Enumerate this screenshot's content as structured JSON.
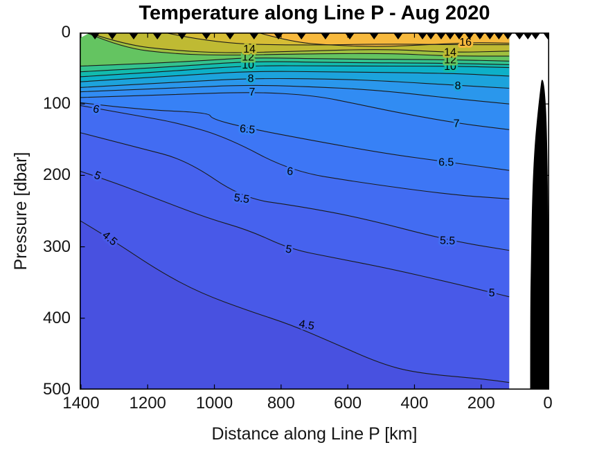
{
  "chart_data": {
    "type": "filled_contour",
    "title": "Temperature along Line P - Aug 2020",
    "xlabel": "Distance along Line P [km]",
    "ylabel": "Pressure [dbar]",
    "x_axis": {
      "ticks": [
        1400,
        1200,
        1000,
        800,
        600,
        400,
        200,
        0
      ],
      "range": [
        1404,
        -4
      ],
      "reversed": true,
      "unit": "km"
    },
    "y_axis": {
      "ticks": [
        0,
        100,
        200,
        300,
        400,
        500
      ],
      "range": [
        0,
        500
      ],
      "direction": "down",
      "unit": "dbar"
    },
    "data_extent_km": [
      1404,
      116
    ],
    "labeled_levels": [
      4.5,
      5,
      5.5,
      6,
      6.5,
      7,
      8,
      10,
      12,
      14,
      16
    ],
    "deepest_band_fill": "#4851e0",
    "contour_line_color": "#1a1a1a",
    "contours": [
      {
        "level": 4.5,
        "labeled": true,
        "fill_above": "#4859e8",
        "points": [
          [
            1404,
            263
          ],
          [
            1311,
            289
          ],
          [
            1166,
            334
          ],
          [
            1041,
            365
          ],
          [
            895,
            390
          ],
          [
            771,
            409
          ],
          [
            646,
            434
          ],
          [
            500,
            464
          ],
          [
            390,
            477
          ],
          [
            195,
            485
          ],
          [
            116,
            490
          ]
        ],
        "labels": [
          [
            1313,
            288,
            40
          ],
          [
            723,
            409,
            10
          ]
        ]
      },
      {
        "level": 5,
        "labeled": true,
        "fill_above": "#4662ee",
        "points": [
          [
            1404,
            194
          ],
          [
            1311,
            208
          ],
          [
            1166,
            234
          ],
          [
            1020,
            260
          ],
          [
            895,
            277
          ],
          [
            774,
            303
          ],
          [
            646,
            315
          ],
          [
            480,
            330
          ],
          [
            293,
            350
          ],
          [
            168,
            364
          ],
          [
            116,
            370
          ]
        ],
        "labels": [
          [
            1350,
            200,
            22
          ],
          [
            777,
            303,
            10
          ],
          [
            168,
            364,
            2
          ]
        ]
      },
      {
        "level": 5.5,
        "labeled": true,
        "fill_above": "#426cf2",
        "points": [
          [
            1404,
            140
          ],
          [
            1228,
            161
          ],
          [
            1082,
            179
          ],
          [
            916,
            232
          ],
          [
            750,
            243
          ],
          [
            563,
            259
          ],
          [
            299,
            291
          ],
          [
            116,
            305
          ]
        ],
        "labels": [
          [
            918,
            232,
            8
          ],
          [
            301,
            291,
            2
          ]
        ]
      },
      {
        "level": 6,
        "labeled": true,
        "fill_above": "#3d76f5",
        "points": [
          [
            1404,
            102
          ],
          [
            1248,
            115
          ],
          [
            1103,
            127
          ],
          [
            957,
            148
          ],
          [
            771,
            194
          ],
          [
            563,
            210
          ],
          [
            293,
            227
          ],
          [
            116,
            233
          ]
        ],
        "labels": [
          [
            1354,
            107,
            14
          ],
          [
            773,
            194,
            4
          ]
        ]
      },
      {
        "level": 6.5,
        "labeled": true,
        "fill_above": "#3781f6",
        "points": [
          [
            1404,
            98
          ],
          [
            1228,
            108
          ],
          [
            1016,
            112
          ],
          [
            1009,
            121
          ],
          [
            899,
            134
          ],
          [
            708,
            151
          ],
          [
            480,
            170
          ],
          [
            303,
            181
          ],
          [
            116,
            193
          ]
        ],
        "labels": [
          [
            901,
            135,
            6
          ],
          [
            305,
            181,
            0
          ]
        ]
      },
      {
        "level": 7,
        "labeled": true,
        "fill_above": "#318cf3",
        "points": [
          [
            1404,
            91
          ],
          [
            1124,
            87
          ],
          [
            885,
            83
          ],
          [
            700,
            88
          ],
          [
            563,
            101
          ],
          [
            450,
            112
          ],
          [
            272,
            127
          ],
          [
            116,
            136
          ]
        ],
        "labels": [
          [
            887,
            83,
            0
          ],
          [
            274,
            127,
            0
          ]
        ]
      },
      {
        "level": 7.5,
        "labeled": false,
        "fill_above": "#2a97ec",
        "points": [
          [
            1404,
            83
          ],
          [
            1124,
            78
          ],
          [
            895,
            73
          ],
          [
            646,
            77
          ],
          [
            480,
            82
          ],
          [
            293,
            92
          ],
          [
            116,
            100
          ]
        ],
        "labels": []
      },
      {
        "level": 8,
        "labeled": true,
        "fill_above": "#1ca3dc",
        "points": [
          [
            1404,
            77
          ],
          [
            1124,
            70
          ],
          [
            895,
            64
          ],
          [
            646,
            65
          ],
          [
            480,
            68
          ],
          [
            270,
            74
          ],
          [
            116,
            78
          ]
        ],
        "labels": [
          [
            891,
            64,
            0
          ],
          [
            270,
            74,
            0
          ]
        ]
      },
      {
        "level": 9,
        "labeled": false,
        "fill_above": "#0db0c8",
        "points": [
          [
            1404,
            69
          ],
          [
            1124,
            61
          ],
          [
            895,
            54
          ],
          [
            646,
            55
          ],
          [
            293,
            57
          ],
          [
            116,
            61
          ]
        ],
        "labels": []
      },
      {
        "level": 10,
        "labeled": true,
        "fill_above": "#12bbae",
        "points": [
          [
            1404,
            62
          ],
          [
            1124,
            54
          ],
          [
            895,
            46
          ],
          [
            646,
            47
          ],
          [
            293,
            47
          ],
          [
            116,
            49
          ]
        ],
        "labels": [
          [
            899,
            45,
            0
          ],
          [
            293,
            47,
            0
          ]
        ]
      },
      {
        "level": 11,
        "labeled": false,
        "fill_above": "#33c28e",
        "points": [
          [
            1404,
            55
          ],
          [
            1124,
            48
          ],
          [
            895,
            40
          ],
          [
            646,
            42
          ],
          [
            293,
            43
          ],
          [
            116,
            45
          ]
        ],
        "labels": []
      },
      {
        "level": 12,
        "labeled": true,
        "fill_above": "#64c461",
        "points": [
          [
            1404,
            47
          ],
          [
            1228,
            44
          ],
          [
            1020,
            39
          ],
          [
            895,
            35
          ],
          [
            646,
            37
          ],
          [
            293,
            38
          ],
          [
            116,
            40
          ]
        ],
        "labels": [
          [
            899,
            34,
            0
          ],
          [
            293,
            38,
            0
          ]
        ]
      },
      {
        "level": 13,
        "labeled": false,
        "fill_above": "#a0c03f",
        "points": [
          [
            1385,
            0
          ],
          [
            1280,
            21
          ],
          [
            1124,
            30
          ],
          [
            958,
            32
          ],
          [
            750,
            30
          ],
          [
            480,
            29
          ],
          [
            293,
            33
          ],
          [
            116,
            33
          ]
        ],
        "labels": []
      },
      {
        "level": 14,
        "labeled": true,
        "fill_above": "#bfba33",
        "points": [
          [
            1379,
            0
          ],
          [
            1269,
            17
          ],
          [
            1124,
            25
          ],
          [
            958,
            29
          ],
          [
            750,
            26
          ],
          [
            480,
            23
          ],
          [
            293,
            28
          ],
          [
            116,
            26
          ]
        ],
        "labels": [
          [
            895,
            23,
            0
          ],
          [
            293,
            27,
            0
          ]
        ]
      },
      {
        "level": 15,
        "labeled": false,
        "fill_above": "#d6bd35",
        "points": [
          [
            1150,
            0
          ],
          [
            1000,
            15
          ],
          [
            750,
            18
          ],
          [
            480,
            16
          ],
          [
            293,
            17
          ],
          [
            116,
            17
          ]
        ],
        "labels": []
      },
      {
        "level": 16,
        "labeled": true,
        "fill_above": "#f7b93d",
        "points": [
          [
            870,
            0
          ],
          [
            771,
            13
          ],
          [
            646,
            18
          ],
          [
            500,
            20
          ],
          [
            355,
            17
          ],
          [
            231,
            14
          ],
          [
            116,
            15
          ]
        ],
        "labels": [
          [
            247,
            13,
            0
          ]
        ]
      }
    ],
    "stations_km": [
      1358,
      1306,
      1242,
      1171,
      1097,
      1024,
      953,
      881,
      808,
      739,
      667,
      594,
      521,
      449,
      376,
      351,
      320,
      293,
      266,
      235,
      204,
      174,
      147,
      120,
      85,
      60,
      37,
      0
    ],
    "station_marker": {
      "shape": "triangle-down",
      "color": "#000000"
    },
    "bathymetry_polygon": [
      [
        52,
        500
      ],
      [
        52,
        390
      ],
      [
        50,
        323
      ],
      [
        46,
        226
      ],
      [
        39,
        158
      ],
      [
        29,
        109
      ],
      [
        21,
        76
      ],
      [
        17,
        63
      ],
      [
        10,
        80
      ],
      [
        4,
        129
      ],
      [
        0,
        245
      ],
      [
        -2,
        500
      ]
    ],
    "bathymetry_color": "#000000",
    "no_data_notch": [
      [
        1404,
        0
      ],
      [
        1372,
        0
      ],
      [
        1404,
        8
      ]
    ]
  },
  "style": {
    "frame_color": "#000000",
    "tick_color": "#000000",
    "text_color": "#151515",
    "background": "#ffffff",
    "contour_label_color": "#000000"
  }
}
